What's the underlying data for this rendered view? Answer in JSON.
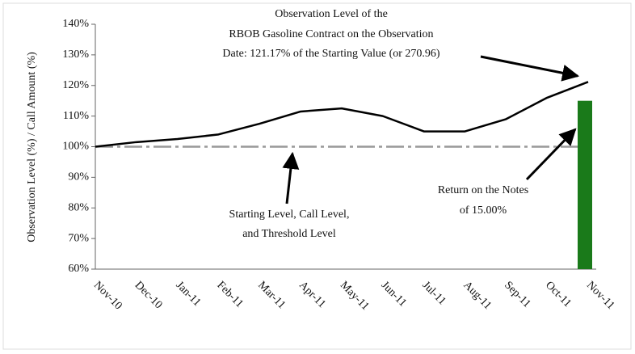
{
  "chart_data": {
    "type": "line",
    "ylabel": "Observation Level (%) / Call Amount (%)",
    "categories": [
      "Nov-10",
      "Dec-10",
      "Jan-11",
      "Feb-11",
      "Mar-11",
      "Apr-11",
      "May-11",
      "Jun-11",
      "Jul-11",
      "Aug-11",
      "Sep-11",
      "Oct-11",
      "Nov-11"
    ],
    "series": [
      {
        "type": "line",
        "color": "#000000",
        "values": [
          100,
          101.5,
          102.5,
          104,
          107.5,
          111.5,
          112.5,
          110,
          105,
          105,
          109,
          116,
          121.17
        ]
      },
      {
        "type": "bar",
        "color": "#1a7a1a",
        "values": [
          null,
          null,
          null,
          null,
          null,
          null,
          null,
          null,
          null,
          null,
          null,
          null,
          115
        ]
      }
    ],
    "reference_line": 100,
    "reference_color": "#999999",
    "ylim": [
      60,
      140
    ],
    "yticks": [
      {
        "value": 60,
        "label": "60%"
      },
      {
        "value": 70,
        "label": "70%"
      },
      {
        "value": 80,
        "label": "80%"
      },
      {
        "value": 90,
        "label": "90%"
      },
      {
        "value": 100,
        "label": "100%"
      },
      {
        "value": 110,
        "label": "110%"
      },
      {
        "value": 120,
        "label": "120%"
      },
      {
        "value": 130,
        "label": "130%"
      },
      {
        "value": 140,
        "label": "140%"
      }
    ],
    "annotations": [
      [
        "Observation Level of the",
        "RBOB Gasoline Contract on the Observation",
        "Date: 121.17% of the Starting Value (or 270.96)"
      ],
      [
        "Starting Level, Call Level,",
        "and Threshold Level"
      ],
      [
        "Return on the Notes",
        "of 15.00%"
      ]
    ]
  }
}
